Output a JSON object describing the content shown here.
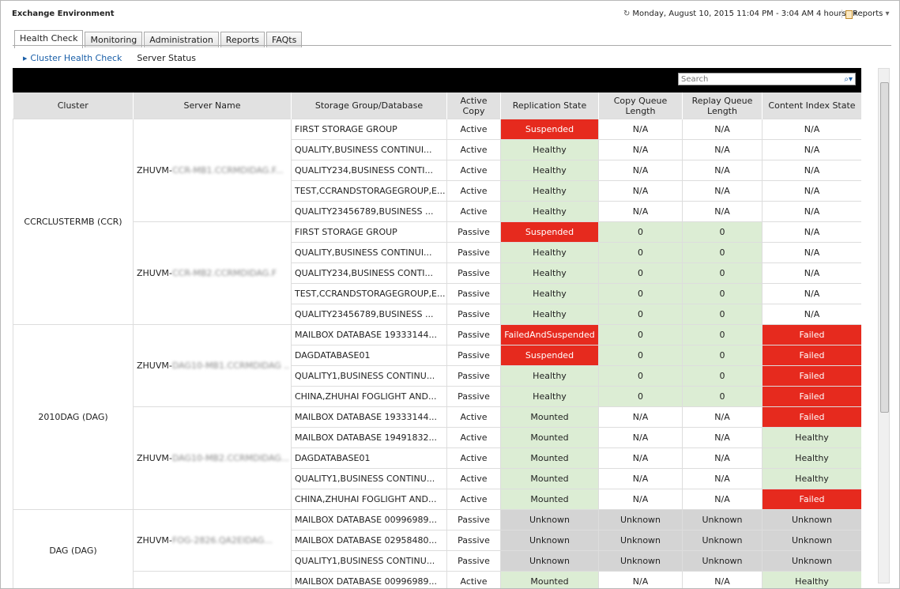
{
  "header": {
    "title": "Exchange Environment",
    "time_range": "Monday, August 10, 2015 11:04 PM - 3:04 AM 4 hours",
    "reports": "Reports"
  },
  "tabs": [
    "Health Check",
    "Monitoring",
    "Administration",
    "Reports",
    "FAQts"
  ],
  "subnav": [
    "Cluster Health Check",
    "Server Status"
  ],
  "search_placeholder": "Search",
  "table": {
    "columns": [
      "Cluster",
      "Server Name",
      "Storage Group/Database",
      "Active Copy",
      "Replication State",
      "Copy Queue Length",
      "Replay Queue Length",
      "Content Index State"
    ],
    "clusters": [
      {
        "name": "CCRCLUSTERMB (CCR)",
        "servers": [
          {
            "prefix": "ZHUVM-",
            "redacted": "CCR-MB1.CCRMDIDAG.F...",
            "rows": [
              {
                "database": "FIRST STORAGE GROUP",
                "active_copy": "Active",
                "status": [
                  {
                    "text": "Suspended",
                    "color": "#e62a1e"
                  },
                  {
                    "text": "N/A",
                    "color": "#ffffff"
                  },
                  {
                    "text": "N/A",
                    "color": "#ffffff"
                  },
                  {
                    "text": "N/A",
                    "color": "#ffffff"
                  }
                ]
              },
              {
                "database": "QUALITY,BUSINESS CONTINUI...",
                "active_copy": "Active",
                "status": [
                  {
                    "text": "Healthy",
                    "color": "#dcedd4"
                  },
                  {
                    "text": "N/A",
                    "color": "#ffffff"
                  },
                  {
                    "text": "N/A",
                    "color": "#ffffff"
                  },
                  {
                    "text": "N/A",
                    "color": "#ffffff"
                  }
                ]
              },
              {
                "database": "QUALITY234,BUSINESS CONTI...",
                "active_copy": "Active",
                "status": [
                  {
                    "text": "Healthy",
                    "color": "#dcedd4"
                  },
                  {
                    "text": "N/A",
                    "color": "#ffffff"
                  },
                  {
                    "text": "N/A",
                    "color": "#ffffff"
                  },
                  {
                    "text": "N/A",
                    "color": "#ffffff"
                  }
                ]
              },
              {
                "database": "TEST,CCRANDSTORAGEGROUP,E...",
                "active_copy": "Active",
                "status": [
                  {
                    "text": "Healthy",
                    "color": "#dcedd4"
                  },
                  {
                    "text": "N/A",
                    "color": "#ffffff"
                  },
                  {
                    "text": "N/A",
                    "color": "#ffffff"
                  },
                  {
                    "text": "N/A",
                    "color": "#ffffff"
                  }
                ]
              },
              {
                "database": "QUALITY23456789,BUSINESS ...",
                "active_copy": "Active",
                "status": [
                  {
                    "text": "Healthy",
                    "color": "#dcedd4"
                  },
                  {
                    "text": "N/A",
                    "color": "#ffffff"
                  },
                  {
                    "text": "N/A",
                    "color": "#ffffff"
                  },
                  {
                    "text": "N/A",
                    "color": "#ffffff"
                  }
                ]
              }
            ]
          },
          {
            "prefix": "ZHUVM-",
            "redacted": "CCR-MB2.CCRMDIDAG.F",
            "rows": [
              {
                "database": "FIRST STORAGE GROUP",
                "active_copy": "Passive",
                "status": [
                  {
                    "text": "Suspended",
                    "color": "#e62a1e"
                  },
                  {
                    "text": "0",
                    "color": "#dcedd4"
                  },
                  {
                    "text": "0",
                    "color": "#dcedd4"
                  },
                  {
                    "text": "N/A",
                    "color": "#ffffff"
                  }
                ]
              },
              {
                "database": "QUALITY,BUSINESS CONTINUI...",
                "active_copy": "Passive",
                "status": [
                  {
                    "text": "Healthy",
                    "color": "#dcedd4"
                  },
                  {
                    "text": "0",
                    "color": "#dcedd4"
                  },
                  {
                    "text": "0",
                    "color": "#dcedd4"
                  },
                  {
                    "text": "N/A",
                    "color": "#ffffff"
                  }
                ]
              },
              {
                "database": "QUALITY234,BUSINESS CONTI...",
                "active_copy": "Passive",
                "status": [
                  {
                    "text": "Healthy",
                    "color": "#dcedd4"
                  },
                  {
                    "text": "0",
                    "color": "#dcedd4"
                  },
                  {
                    "text": "0",
                    "color": "#dcedd4"
                  },
                  {
                    "text": "N/A",
                    "color": "#ffffff"
                  }
                ]
              },
              {
                "database": "TEST,CCRANDSTORAGEGROUP,E...",
                "active_copy": "Passive",
                "status": [
                  {
                    "text": "Healthy",
                    "color": "#dcedd4"
                  },
                  {
                    "text": "0",
                    "color": "#dcedd4"
                  },
                  {
                    "text": "0",
                    "color": "#dcedd4"
                  },
                  {
                    "text": "N/A",
                    "color": "#ffffff"
                  }
                ]
              },
              {
                "database": "QUALITY23456789,BUSINESS ...",
                "active_copy": "Passive",
                "status": [
                  {
                    "text": "Healthy",
                    "color": "#dcedd4"
                  },
                  {
                    "text": "0",
                    "color": "#dcedd4"
                  },
                  {
                    "text": "0",
                    "color": "#dcedd4"
                  },
                  {
                    "text": "N/A",
                    "color": "#ffffff"
                  }
                ]
              }
            ]
          }
        ]
      },
      {
        "name": "2010DAG (DAG)",
        "servers": [
          {
            "prefix": "ZHUVM-",
            "redacted": "DAG10-MB1.CCRMDIDAG ..",
            "rows": [
              {
                "database": "MAILBOX DATABASE 19333144...",
                "active_copy": "Passive",
                "status": [
                  {
                    "text": "FailedAndSuspended",
                    "color": "#e62a1e"
                  },
                  {
                    "text": "0",
                    "color": "#dcedd4"
                  },
                  {
                    "text": "0",
                    "color": "#dcedd4"
                  },
                  {
                    "text": "Failed",
                    "color": "#e62a1e"
                  }
                ]
              },
              {
                "database": "DAGDATABASE01",
                "active_copy": "Passive",
                "status": [
                  {
                    "text": "Suspended",
                    "color": "#e62a1e"
                  },
                  {
                    "text": "0",
                    "color": "#dcedd4"
                  },
                  {
                    "text": "0",
                    "color": "#dcedd4"
                  },
                  {
                    "text": "Failed",
                    "color": "#e62a1e"
                  }
                ]
              },
              {
                "database": "QUALITY1,BUSINESS CONTINU...",
                "active_copy": "Passive",
                "status": [
                  {
                    "text": "Healthy",
                    "color": "#dcedd4"
                  },
                  {
                    "text": "0",
                    "color": "#dcedd4"
                  },
                  {
                    "text": "0",
                    "color": "#dcedd4"
                  },
                  {
                    "text": "Failed",
                    "color": "#e62a1e"
                  }
                ]
              },
              {
                "database": "CHINA,ZHUHAI FOGLIGHT AND...",
                "active_copy": "Passive",
                "status": [
                  {
                    "text": "Healthy",
                    "color": "#dcedd4"
                  },
                  {
                    "text": "0",
                    "color": "#dcedd4"
                  },
                  {
                    "text": "0",
                    "color": "#dcedd4"
                  },
                  {
                    "text": "Failed",
                    "color": "#e62a1e"
                  }
                ]
              }
            ]
          },
          {
            "prefix": "ZHUVM-",
            "redacted": "DAG10-MB2.CCRMDIDAG...",
            "rows": [
              {
                "database": "MAILBOX DATABASE 19333144...",
                "active_copy": "Active",
                "status": [
                  {
                    "text": "Mounted",
                    "color": "#dcedd4"
                  },
                  {
                    "text": "N/A",
                    "color": "#ffffff"
                  },
                  {
                    "text": "N/A",
                    "color": "#ffffff"
                  },
                  {
                    "text": "Failed",
                    "color": "#e62a1e"
                  }
                ]
              },
              {
                "database": "MAILBOX DATABASE 19491832...",
                "active_copy": "Active",
                "status": [
                  {
                    "text": "Mounted",
                    "color": "#dcedd4"
                  },
                  {
                    "text": "N/A",
                    "color": "#ffffff"
                  },
                  {
                    "text": "N/A",
                    "color": "#ffffff"
                  },
                  {
                    "text": "Healthy",
                    "color": "#dcedd4"
                  }
                ]
              },
              {
                "database": "DAGDATABASE01",
                "active_copy": "Active",
                "status": [
                  {
                    "text": "Mounted",
                    "color": "#dcedd4"
                  },
                  {
                    "text": "N/A",
                    "color": "#ffffff"
                  },
                  {
                    "text": "N/A",
                    "color": "#ffffff"
                  },
                  {
                    "text": "Healthy",
                    "color": "#dcedd4"
                  }
                ]
              },
              {
                "database": "QUALITY1,BUSINESS CONTINU...",
                "active_copy": "Active",
                "status": [
                  {
                    "text": "Mounted",
                    "color": "#dcedd4"
                  },
                  {
                    "text": "N/A",
                    "color": "#ffffff"
                  },
                  {
                    "text": "N/A",
                    "color": "#ffffff"
                  },
                  {
                    "text": "Healthy",
                    "color": "#dcedd4"
                  }
                ]
              },
              {
                "database": "CHINA,ZHUHAI FOGLIGHT AND...",
                "active_copy": "Active",
                "status": [
                  {
                    "text": "Mounted",
                    "color": "#dcedd4"
                  },
                  {
                    "text": "N/A",
                    "color": "#ffffff"
                  },
                  {
                    "text": "N/A",
                    "color": "#ffffff"
                  },
                  {
                    "text": "Failed",
                    "color": "#e62a1e"
                  }
                ]
              }
            ]
          }
        ]
      },
      {
        "name": "DAG (DAG)",
        "servers": [
          {
            "prefix": "ZHUVM-",
            "redacted": "FOG-2826.QA2EIDAG...",
            "rows": [
              {
                "database": "MAILBOX DATABASE 00996989...",
                "active_copy": "Passive",
                "status": [
                  {
                    "text": "Unknown",
                    "color": "#d4d4d4"
                  },
                  {
                    "text": "Unknown",
                    "color": "#d4d4d4"
                  },
                  {
                    "text": "Unknown",
                    "color": "#d4d4d4"
                  },
                  {
                    "text": "Unknown",
                    "color": "#d4d4d4"
                  }
                ]
              },
              {
                "database": "MAILBOX DATABASE 02958480...",
                "active_copy": "Passive",
                "status": [
                  {
                    "text": "Unknown",
                    "color": "#d4d4d4"
                  },
                  {
                    "text": "Unknown",
                    "color": "#d4d4d4"
                  },
                  {
                    "text": "Unknown",
                    "color": "#d4d4d4"
                  },
                  {
                    "text": "Unknown",
                    "color": "#d4d4d4"
                  }
                ]
              },
              {
                "database": "QUALITY1,BUSINESS CONTINU...",
                "active_copy": "Passive",
                "status": [
                  {
                    "text": "Unknown",
                    "color": "#d4d4d4"
                  },
                  {
                    "text": "Unknown",
                    "color": "#d4d4d4"
                  },
                  {
                    "text": "Unknown",
                    "color": "#d4d4d4"
                  },
                  {
                    "text": "Unknown",
                    "color": "#d4d4d4"
                  }
                ]
              }
            ]
          },
          {
            "rows": [
              {
                "database": "MAILBOX DATABASE 00996989...",
                "active_copy": "Active",
                "status": [
                  {
                    "text": "Mounted",
                    "color": "#dcedd4"
                  },
                  {
                    "text": "N/A",
                    "color": "#ffffff"
                  },
                  {
                    "text": "N/A",
                    "color": "#ffffff"
                  },
                  {
                    "text": "Healthy",
                    "color": "#dcedd4"
                  }
                ]
              }
            ]
          }
        ]
      }
    ]
  }
}
